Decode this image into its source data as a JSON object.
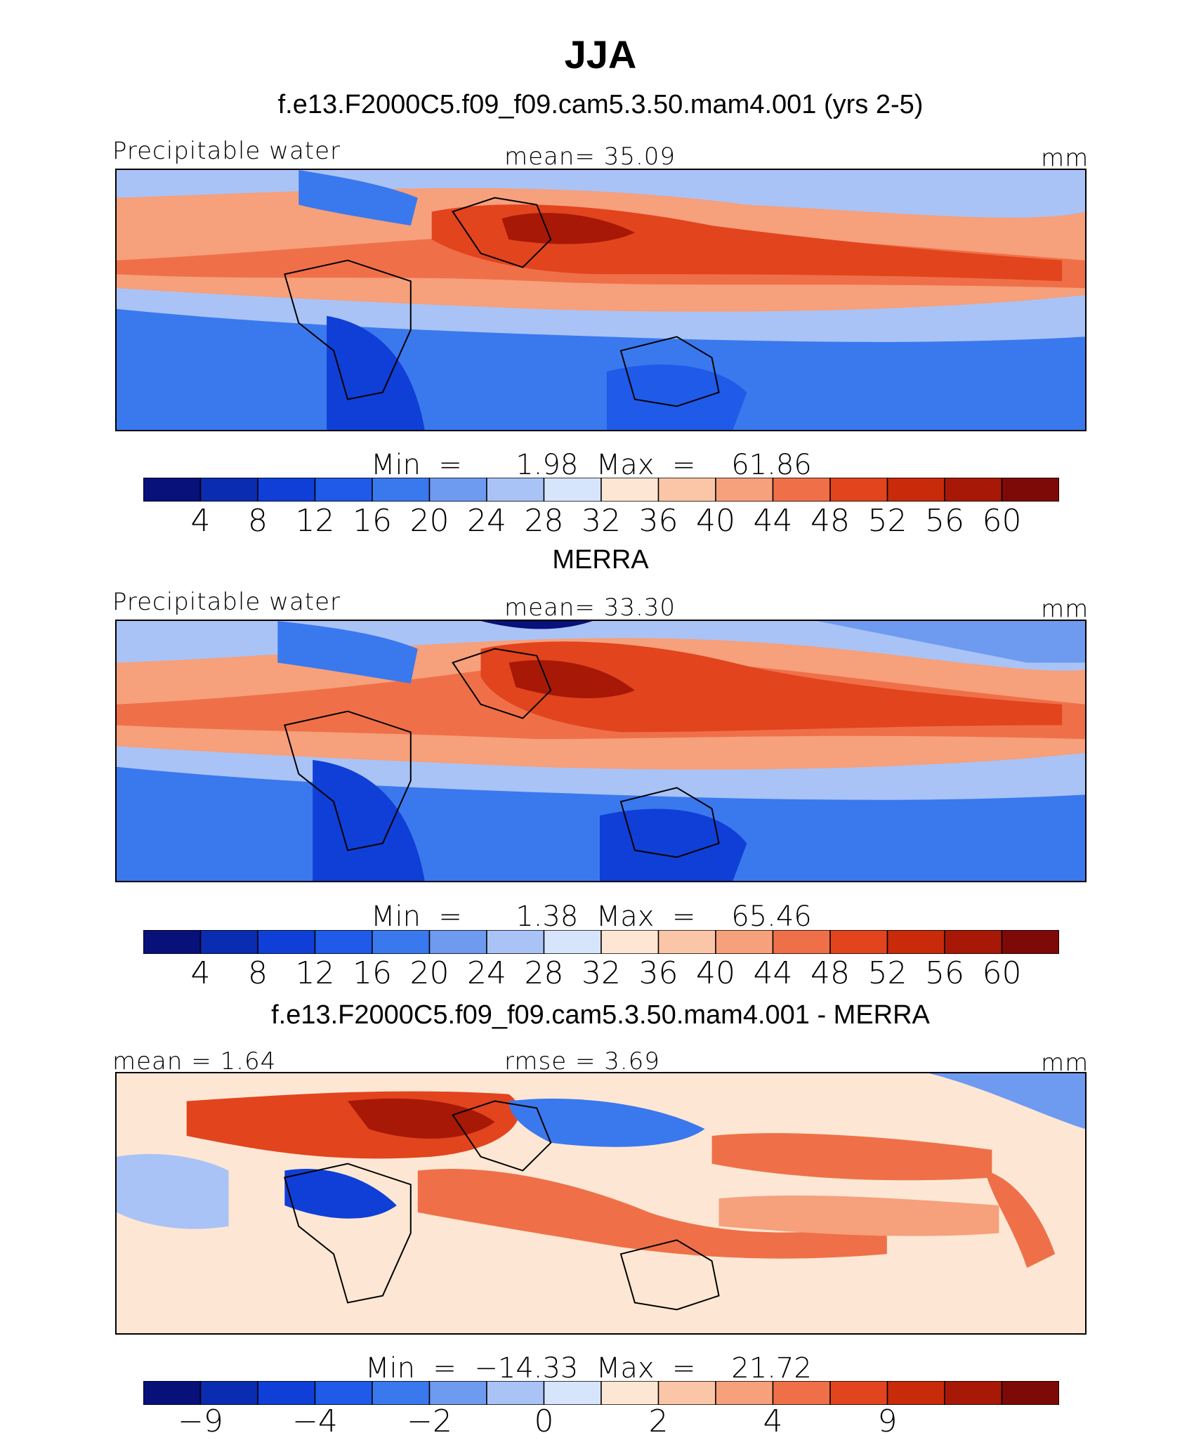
{
  "title": "JJA",
  "palette": [
    "#08107a",
    "#0a2cb0",
    "#0f3fd6",
    "#1f5ae8",
    "#3a78ee",
    "#6e9af0",
    "#a9c3f6",
    "#d6e5fb",
    "#fde7d4",
    "#fbc6a8",
    "#f6a07c",
    "#ef7048",
    "#e2441e",
    "#c82a0a",
    "#a81806",
    "#7d0a06"
  ],
  "land_color": "#000000",
  "panels": [
    {
      "id": "model",
      "title": "f.e13.F2000C5.f09_f09.cam5.3.50.mam4.001 (yrs 2-5)",
      "left_label": "Precipitable water",
      "center_label": "mean=   35.09",
      "units": "mm",
      "minmax_label": "Min  =      1.98  Max  =    61.86",
      "colorbar_ticks": [
        "4",
        "8",
        "12",
        "16",
        "20",
        "24",
        "28",
        "32",
        "36",
        "40",
        "44",
        "48",
        "52",
        "56",
        "60"
      ]
    },
    {
      "id": "merra",
      "title": "MERRA",
      "left_label": "Precipitable water",
      "center_label": "mean=   33.30",
      "units": "mm",
      "minmax_label": "Min  =      1.38  Max  =    65.46",
      "colorbar_ticks": [
        "4",
        "8",
        "12",
        "16",
        "20",
        "24",
        "28",
        "32",
        "36",
        "40",
        "44",
        "48",
        "52",
        "56",
        "60"
      ]
    },
    {
      "id": "diff",
      "title": "f.e13.F2000C5.f09_f09.cam5.3.50.mam4.001 - MERRA",
      "left_label": "mean  =     1.64",
      "center_label": "rmse  =     3.69",
      "units": "mm",
      "minmax_label": "Min  =  −14.33  Max  =    21.72",
      "colorbar_ticks": [
        "−9",
        "",
        "−4",
        "",
        "−2",
        "",
        "0",
        "",
        "2",
        "",
        "4",
        "",
        "9",
        ""
      ]
    }
  ],
  "chart_data": [
    {
      "type": "heatmap",
      "title": "f.e13.F2000C5.f09_f09.cam5.3.50.mam4.001 (yrs 2-5)",
      "variable": "Precipitable water",
      "units": "mm",
      "mean": 35.09,
      "min": 1.98,
      "max": 61.86,
      "contour_levels": [
        4,
        8,
        12,
        16,
        20,
        24,
        28,
        32,
        36,
        40,
        44,
        48,
        52,
        56,
        60
      ]
    },
    {
      "type": "heatmap",
      "title": "MERRA",
      "variable": "Precipitable water",
      "units": "mm",
      "mean": 33.3,
      "min": 1.38,
      "max": 65.46,
      "contour_levels": [
        4,
        8,
        12,
        16,
        20,
        24,
        28,
        32,
        36,
        40,
        44,
        48,
        52,
        56,
        60
      ]
    },
    {
      "type": "heatmap",
      "title": "f.e13.F2000C5.f09_f09.cam5.3.50.mam4.001 - MERRA",
      "units": "mm",
      "mean": 1.64,
      "rmse": 3.69,
      "min": -14.33,
      "max": 21.72,
      "contour_levels_labeled": [
        -9,
        -4,
        -2,
        0,
        2,
        4,
        9
      ]
    }
  ]
}
